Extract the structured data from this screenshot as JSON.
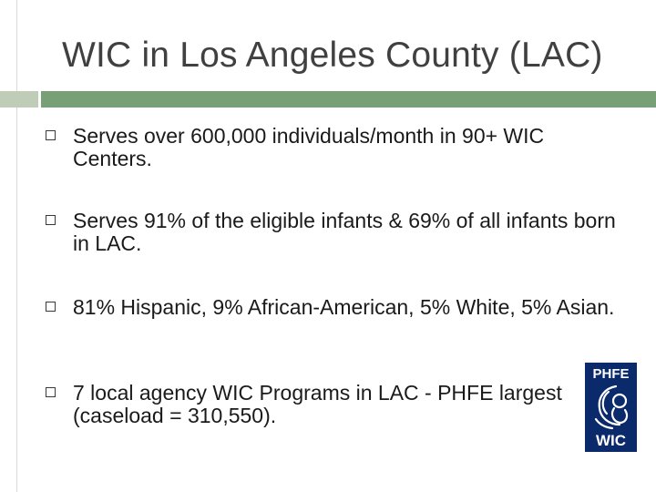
{
  "slide": {
    "title": "WIC in Los Angeles County (LAC)",
    "bullets": [
      "Serves over 600,000 individuals/month in 90+ WIC Centers.",
      "Serves 91% of the eligible infants & 69% of all infants born in LAC.",
      "81% Hispanic, 9% African-American, 5% White, 5% Asian.",
      "7 local agency WIC Programs in LAC - PHFE largest (caseload = 310,550)."
    ],
    "logo": {
      "top_text": "PHFE",
      "bottom_text": "WIC",
      "background": "#0b2a6b"
    },
    "colors": {
      "accent_bar": "#78a076",
      "accent_bar_light": "#bfcdb8",
      "title": "#404040"
    }
  }
}
